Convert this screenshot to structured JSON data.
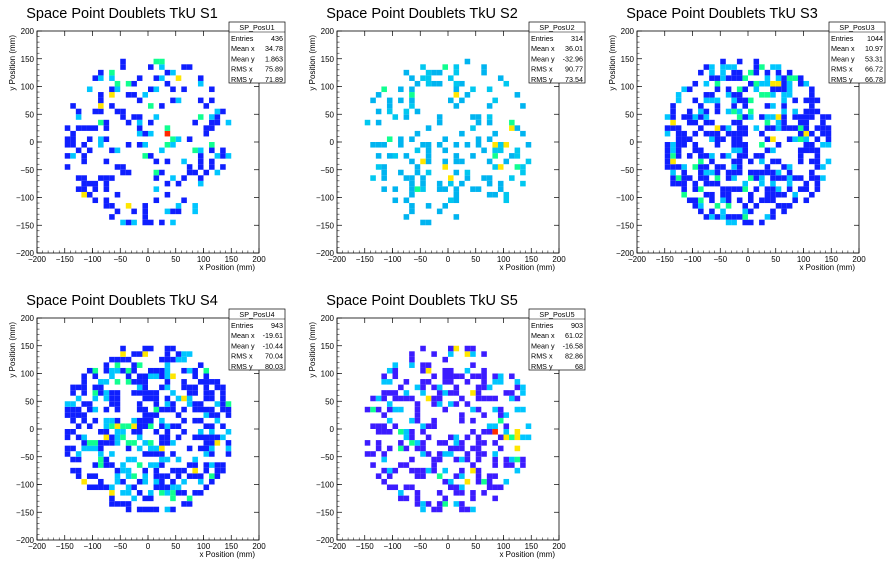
{
  "chart_data": [
    {
      "type": "heatmap",
      "title": "Space Point Doublets TkU S1",
      "xlabel": "x Position (mm)",
      "ylabel": "y Position (mm)",
      "xlim": [
        -200,
        200
      ],
      "ylim": [
        -200,
        200
      ],
      "xticks": [
        "−200",
        "−150",
        "−100",
        "−50",
        "0",
        "50",
        "100",
        "150",
        "200"
      ],
      "yticks": [
        "−200",
        "−150",
        "−100",
        "−50",
        "0",
        "50",
        "100",
        "150",
        "200"
      ],
      "stats": {
        "name": "SP_PosU1",
        "rows": [
          [
            "Entries",
            "436"
          ],
          [
            "Mean x",
            "34.78"
          ],
          [
            "Mean y",
            "1.863"
          ],
          [
            "RMS x",
            "75.89"
          ],
          [
            "RMS y",
            "71.89"
          ]
        ]
      },
      "seed": 11,
      "density": 0.3,
      "hot": {
        "x": 50,
        "y": 10
      },
      "palette": [
        "#0f1fff",
        "#00c6ff",
        "#10ff90",
        "#ffe600",
        "#ff2a00"
      ]
    },
    {
      "type": "heatmap",
      "title": "Space Point Doublets TkU S2",
      "xlabel": "x Position (mm)",
      "ylabel": "y Position (mm)",
      "xlim": [
        -200,
        200
      ],
      "ylim": [
        -200,
        200
      ],
      "xticks": [
        "−200",
        "−150",
        "−100",
        "−50",
        "0",
        "50",
        "100",
        "150",
        "200"
      ],
      "yticks": [
        "−200",
        "−150",
        "−100",
        "−50",
        "0",
        "50",
        "100",
        "150",
        "200"
      ],
      "stats": {
        "name": "SP_PosU2",
        "rows": [
          [
            "Entries",
            "314"
          ],
          [
            "Mean x",
            "36.01"
          ],
          [
            "Mean y",
            "-32.96"
          ],
          [
            "RMS x",
            "90.77"
          ],
          [
            "RMS y",
            "73.54"
          ]
        ]
      },
      "seed": 23,
      "density": 0.22,
      "hot": {
        "x": 130,
        "y": -20
      },
      "palette": [
        "#00b4f0",
        "#00c8f0",
        "#10ff90",
        "#ffe600",
        "#ff2a00"
      ]
    },
    {
      "type": "heatmap",
      "title": "Space Point Doublets TkU S3",
      "xlabel": "x Position (mm)",
      "ylabel": "y Position (mm)",
      "xlim": [
        -200,
        200
      ],
      "ylim": [
        -200,
        200
      ],
      "xticks": [
        "−200",
        "−150",
        "−100",
        "−50",
        "0",
        "50",
        "100",
        "150",
        "200"
      ],
      "yticks": [
        "−200",
        "−150",
        "−100",
        "−50",
        "0",
        "50",
        "100",
        "150",
        "200"
      ],
      "stats": {
        "name": "SP_PosU3",
        "rows": [
          [
            "Entries",
            "1044"
          ],
          [
            "Mean x",
            "10.97"
          ],
          [
            "Mean y",
            "53.31"
          ],
          [
            "RMS x",
            "66.72"
          ],
          [
            "RMS y",
            "66.78"
          ]
        ]
      },
      "seed": 37,
      "density": 0.55,
      "hot": {
        "x": 20,
        "y": 80
      },
      "palette": [
        "#0f1fff",
        "#00c6ff",
        "#10ff90",
        "#ffe600",
        "#ff2a00"
      ]
    },
    {
      "type": "heatmap",
      "title": "Space Point Doublets TkU S4",
      "xlabel": "x Position (mm)",
      "ylabel": "y Position (mm)",
      "xlim": [
        -200,
        200
      ],
      "ylim": [
        -200,
        200
      ],
      "xticks": [
        "−200",
        "−150",
        "−100",
        "−50",
        "0",
        "50",
        "100",
        "150",
        "200"
      ],
      "yticks": [
        "−200",
        "−150",
        "−100",
        "−50",
        "0",
        "50",
        "100",
        "150",
        "200"
      ],
      "stats": {
        "name": "SP_PosU4",
        "rows": [
          [
            "Entries",
            "943"
          ],
          [
            "Mean x",
            "-19.61"
          ],
          [
            "Mean y",
            "-10.44"
          ],
          [
            "RMS x",
            "70.04"
          ],
          [
            "RMS y",
            "80.03"
          ]
        ]
      },
      "seed": 53,
      "density": 0.5,
      "hot": {
        "x": -60,
        "y": -40
      },
      "palette": [
        "#0f1fff",
        "#00c6ff",
        "#10ff90",
        "#ffe600",
        "#ff2a00"
      ]
    },
    {
      "type": "heatmap",
      "title": "Space Point Doublets TkU S5",
      "xlabel": "x Position (mm)",
      "ylabel": "y Position (mm)",
      "xlim": [
        -200,
        200
      ],
      "ylim": [
        -200,
        200
      ],
      "xticks": [
        "−200",
        "−150",
        "−100",
        "−50",
        "0",
        "50",
        "100",
        "150",
        "200"
      ],
      "yticks": [
        "−200",
        "−150",
        "−100",
        "−50",
        "0",
        "50",
        "100",
        "150",
        "200"
      ],
      "stats": {
        "name": "SP_PosU5",
        "rows": [
          [
            "Entries",
            "903"
          ],
          [
            "Mean x",
            "61.02"
          ],
          [
            "Mean y",
            "-16.58"
          ],
          [
            "RMS x",
            "82.86"
          ],
          [
            "RMS y",
            "68"
          ]
        ]
      },
      "seed": 71,
      "density": 0.42,
      "hot": {
        "x": 130,
        "y": 10
      },
      "palette": [
        "#3c1cff",
        "#00c6ff",
        "#10ff90",
        "#ffe600",
        "#ff2a00"
      ]
    }
  ]
}
